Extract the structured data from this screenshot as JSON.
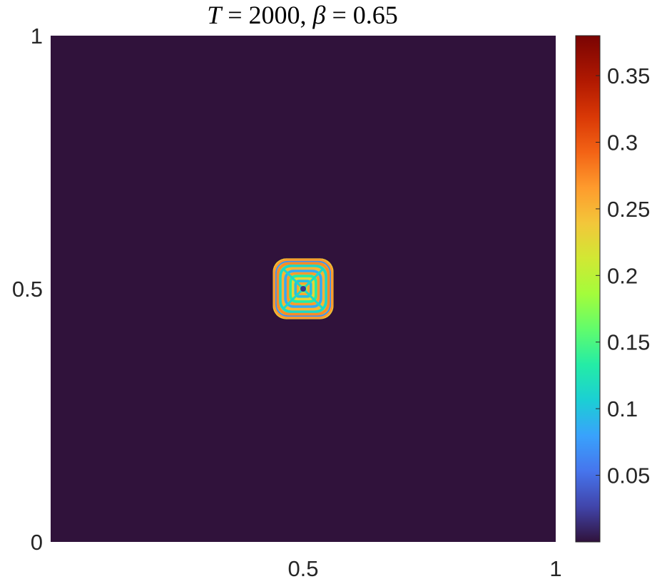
{
  "chart_data": {
    "type": "heatmap",
    "title": "T = 2000,  β = 0.65",
    "title_parts": {
      "T_var": "T",
      "T_eq": " = 2000,  ",
      "beta_var": "β",
      "beta_eq": " = 0.65"
    },
    "xlabel": "",
    "ylabel": "",
    "xlim": [
      0,
      1
    ],
    "ylim": [
      0,
      1
    ],
    "x_tick_labels": [
      {
        "value": 0.5,
        "label": "0.5"
      },
      {
        "value": 1,
        "label": "1"
      }
    ],
    "y_tick_labels": [
      {
        "value": 0,
        "label": "0"
      },
      {
        "value": 0.5,
        "label": "0.5"
      },
      {
        "value": 1,
        "label": "1"
      }
    ],
    "grid": false,
    "colormap": "turbo",
    "background_color": "#30123b",
    "clim": [
      0,
      0.38
    ],
    "colorbar": {
      "placement": "right",
      "ticks": [
        {
          "value": 0.05,
          "label": "0.05"
        },
        {
          "value": 0.1,
          "label": "0.1"
        },
        {
          "value": 0.15,
          "label": "0.15"
        },
        {
          "value": 0.2,
          "label": "0.2"
        },
        {
          "value": 0.25,
          "label": "0.25"
        },
        {
          "value": 0.3,
          "label": "0.3"
        },
        {
          "value": 0.35,
          "label": "0.35"
        }
      ]
    },
    "pattern": {
      "shape": "rounded-square ring pattern",
      "center": [
        0.5,
        0.5
      ],
      "x_extent": [
        0.44,
        0.56
      ],
      "y_extent": [
        0.44,
        0.56
      ],
      "peak_value": 0.28
    }
  }
}
